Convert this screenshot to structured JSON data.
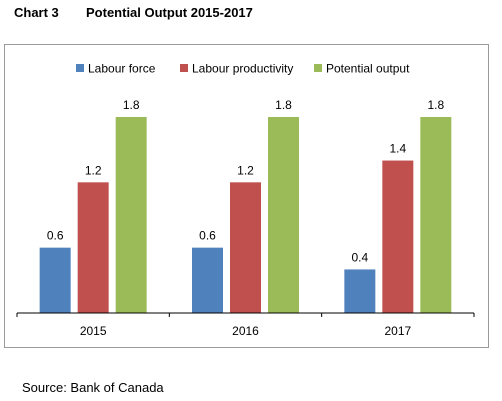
{
  "heading": {
    "chart_number": "Chart 3",
    "title": "Potential Output 2015-2017"
  },
  "source": "Source: Bank of Canada",
  "colors": {
    "labour_force": "#4f81bd",
    "labour_productivity": "#c0504d",
    "potential_output": "#9bbb59",
    "axis": "#000000",
    "frame": "#9a9a9a"
  },
  "chart_data": {
    "type": "bar",
    "title": "Potential Output 2015-2017",
    "categories": [
      "2015",
      "2016",
      "2017"
    ],
    "series": [
      {
        "name": "Labour force",
        "values": [
          0.6,
          0.6,
          0.4
        ],
        "labels": [
          "0.6",
          "0.6",
          "0.4"
        ],
        "color": "#4f81bd"
      },
      {
        "name": "Labour productivity",
        "values": [
          1.2,
          1.2,
          1.4
        ],
        "labels": [
          "1.2",
          "1.2",
          "1.4"
        ],
        "color": "#c0504d"
      },
      {
        "name": "Potential output",
        "values": [
          1.8,
          1.8,
          1.8
        ],
        "labels": [
          "1.8",
          "1.8",
          "1.8"
        ],
        "color": "#9bbb59"
      }
    ],
    "xlabel": "",
    "ylabel": "",
    "ylim": [
      0,
      1.8
    ],
    "grid": false,
    "legend_position": "top",
    "data_labels": true
  }
}
